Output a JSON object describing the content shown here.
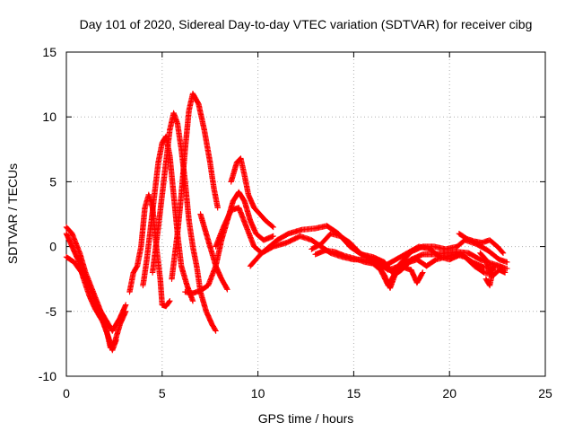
{
  "chart_data": {
    "type": "scatter",
    "title": "Day 101 of 2020, Sidereal Day-to-day VTEC variation (SDTVAR) for receiver cibg",
    "xlabel": "GPS time / hours",
    "ylabel": "SDTVAR / TECUs",
    "xlim": [
      0,
      25
    ],
    "ylim": [
      -10,
      15
    ],
    "grid": true,
    "marker": "+",
    "xticks": [
      0,
      5,
      10,
      15,
      20,
      25
    ],
    "yticks": [
      -10,
      -5,
      0,
      5,
      10,
      15
    ],
    "xtick_labels": [
      "0",
      "5",
      "10",
      "15",
      "20",
      "25"
    ],
    "ytick_labels": [
      "-10",
      "-5",
      "0",
      "5",
      "10",
      "15"
    ],
    "series": [
      {
        "name": "track-a",
        "color": "#ff0000",
        "points": [
          [
            0.0,
            1.5
          ],
          [
            0.3,
            1.0
          ],
          [
            0.7,
            -0.5
          ],
          [
            1.0,
            -2.0
          ],
          [
            1.4,
            -3.5
          ],
          [
            1.8,
            -5.0
          ],
          [
            2.1,
            -6.5
          ],
          [
            2.3,
            -7.8
          ],
          [
            2.5,
            -7.5
          ],
          [
            2.8,
            -6.0
          ],
          [
            3.1,
            -5.0
          ]
        ]
      },
      {
        "name": "track-b",
        "color": "#ff0000",
        "points": [
          [
            0.0,
            1.0
          ],
          [
            0.3,
            0.0
          ],
          [
            0.6,
            -1.0
          ],
          [
            0.9,
            -2.5
          ],
          [
            1.2,
            -3.8
          ],
          [
            1.5,
            -4.8
          ],
          [
            1.9,
            -5.8
          ],
          [
            2.2,
            -7.0
          ],
          [
            2.4,
            -8.0
          ],
          [
            2.6,
            -7.2
          ]
        ]
      },
      {
        "name": "track-c",
        "color": "#ff0000",
        "points": [
          [
            0.0,
            -0.8
          ],
          [
            0.4,
            -1.2
          ],
          [
            0.8,
            -2.0
          ],
          [
            1.2,
            -3.0
          ],
          [
            1.6,
            -4.5
          ],
          [
            2.0,
            -5.5
          ],
          [
            2.4,
            -6.5
          ],
          [
            2.8,
            -5.5
          ],
          [
            3.1,
            -4.5
          ]
        ]
      },
      {
        "name": "track-d",
        "color": "#ff0000",
        "points": [
          [
            3.3,
            -3.5
          ],
          [
            3.5,
            -2.0
          ],
          [
            3.7,
            -1.5
          ],
          [
            3.9,
            0.0
          ],
          [
            4.0,
            1.5
          ],
          [
            4.1,
            3.0
          ],
          [
            4.3,
            4.0
          ],
          [
            4.5,
            3.0
          ],
          [
            4.7,
            0.0
          ],
          [
            4.9,
            -2.5
          ],
          [
            5.0,
            -4.5
          ],
          [
            5.2,
            -4.6
          ],
          [
            5.4,
            -4.2
          ]
        ]
      },
      {
        "name": "track-e",
        "color": "#ff0000",
        "points": [
          [
            4.0,
            -3.0
          ],
          [
            4.2,
            -1.0
          ],
          [
            4.4,
            1.5
          ],
          [
            4.6,
            4.0
          ],
          [
            4.8,
            6.5
          ],
          [
            5.0,
            8.0
          ],
          [
            5.2,
            8.5
          ],
          [
            5.4,
            7.0
          ],
          [
            5.6,
            4.0
          ],
          [
            5.8,
            1.0
          ],
          [
            6.0,
            -1.5
          ],
          [
            6.3,
            -3.0
          ],
          [
            6.6,
            -4.2
          ]
        ]
      },
      {
        "name": "track-f",
        "color": "#ff0000",
        "points": [
          [
            4.5,
            -2.0
          ],
          [
            4.8,
            1.5
          ],
          [
            5.0,
            4.0
          ],
          [
            5.2,
            6.5
          ],
          [
            5.4,
            9.0
          ],
          [
            5.6,
            10.3
          ],
          [
            5.8,
            9.5
          ],
          [
            6.0,
            7.5
          ],
          [
            6.2,
            5.0
          ],
          [
            6.4,
            2.0
          ],
          [
            6.6,
            0.0
          ],
          [
            6.8,
            -1.5
          ],
          [
            7.0,
            -3.5
          ],
          [
            7.3,
            -5.0
          ],
          [
            7.6,
            -6.0
          ],
          [
            7.8,
            -6.5
          ]
        ]
      },
      {
        "name": "track-g",
        "color": "#ff0000",
        "points": [
          [
            5.5,
            -2.5
          ],
          [
            5.8,
            1.0
          ],
          [
            6.0,
            4.0
          ],
          [
            6.2,
            7.5
          ],
          [
            6.4,
            10.5
          ],
          [
            6.6,
            11.8
          ],
          [
            6.9,
            11.0
          ],
          [
            7.2,
            9.0
          ],
          [
            7.5,
            6.5
          ],
          [
            7.7,
            4.5
          ],
          [
            7.9,
            3.0
          ]
        ]
      },
      {
        "name": "track-h",
        "color": "#ff0000",
        "points": [
          [
            7.0,
            2.5
          ],
          [
            7.3,
            1.0
          ],
          [
            7.6,
            -0.5
          ],
          [
            7.8,
            -1.5
          ],
          [
            8.1,
            -2.5
          ],
          [
            8.4,
            -3.3
          ]
        ]
      },
      {
        "name": "track-i",
        "color": "#ff0000",
        "points": [
          [
            6.2,
            -3.5
          ],
          [
            6.6,
            -3.6
          ],
          [
            7.0,
            -3.4
          ],
          [
            7.4,
            -3.0
          ],
          [
            7.8,
            -1.5
          ],
          [
            8.1,
            0.5
          ],
          [
            8.4,
            2.0
          ],
          [
            8.7,
            3.5
          ],
          [
            9.0,
            4.2
          ],
          [
            9.3,
            3.5
          ],
          [
            9.6,
            2.0
          ],
          [
            9.9,
            1.0
          ],
          [
            10.3,
            0.5
          ],
          [
            10.8,
            0.8
          ]
        ]
      },
      {
        "name": "track-j",
        "color": "#ff0000",
        "points": [
          [
            8.6,
            5.0
          ],
          [
            8.9,
            6.5
          ],
          [
            9.1,
            6.8
          ],
          [
            9.3,
            5.5
          ],
          [
            9.5,
            4.0
          ],
          [
            9.8,
            3.0
          ],
          [
            10.1,
            2.5
          ],
          [
            10.4,
            2.0
          ],
          [
            10.8,
            1.5
          ]
        ]
      },
      {
        "name": "track-k",
        "color": "#ff0000",
        "points": [
          [
            7.8,
            0.0
          ],
          [
            8.2,
            1.5
          ],
          [
            8.6,
            2.8
          ],
          [
            9.0,
            3.0
          ],
          [
            9.4,
            1.5
          ],
          [
            9.8,
            0.0
          ],
          [
            10.2,
            -0.5
          ],
          [
            10.6,
            0.0
          ],
          [
            11.0,
            0.5
          ],
          [
            11.6,
            1.0
          ],
          [
            12.3,
            1.3
          ],
          [
            13.0,
            1.4
          ],
          [
            13.6,
            1.6
          ],
          [
            14.2,
            1.0
          ],
          [
            14.8,
            0.0
          ],
          [
            15.3,
            -0.5
          ],
          [
            16.0,
            -1.0
          ],
          [
            16.6,
            -1.5
          ],
          [
            17.2,
            -1.0
          ],
          [
            17.8,
            -0.5
          ],
          [
            18.4,
            0.0
          ],
          [
            19.0,
            -0.2
          ],
          [
            19.5,
            -0.8
          ],
          [
            20.0,
            -1.0
          ],
          [
            20.6,
            -0.6
          ],
          [
            21.2,
            -1.2
          ],
          [
            21.8,
            -1.6
          ],
          [
            22.5,
            -1.5
          ],
          [
            23.0,
            -1.7
          ]
        ]
      },
      {
        "name": "track-l",
        "color": "#ff0000",
        "points": [
          [
            9.6,
            -1.5
          ],
          [
            10.2,
            -0.5
          ],
          [
            10.8,
            0.0
          ],
          [
            11.5,
            0.3
          ],
          [
            12.2,
            0.8
          ],
          [
            12.8,
            0.5
          ],
          [
            13.3,
            0.0
          ],
          [
            13.8,
            -0.5
          ],
          [
            14.4,
            -0.8
          ],
          [
            15.0,
            -1.0
          ],
          [
            15.6,
            -1.0
          ],
          [
            16.2,
            -1.2
          ],
          [
            16.8,
            -1.8
          ],
          [
            17.4,
            -1.5
          ],
          [
            18.0,
            -1.0
          ],
          [
            18.6,
            -0.6
          ],
          [
            19.2,
            -0.6
          ],
          [
            19.8,
            -0.5
          ],
          [
            20.4,
            -0.4
          ],
          [
            21.0,
            -0.5
          ],
          [
            21.6,
            -1.0
          ],
          [
            22.2,
            -1.3
          ],
          [
            22.8,
            -1.6
          ]
        ]
      },
      {
        "name": "track-m",
        "color": "#ff0000",
        "points": [
          [
            12.8,
            -0.2
          ],
          [
            13.3,
            0.2
          ],
          [
            13.8,
            1.0
          ],
          [
            14.3,
            0.8
          ],
          [
            14.8,
            0.3
          ],
          [
            15.4,
            -0.6
          ],
          [
            16.0,
            -0.8
          ],
          [
            16.6,
            -1.2
          ],
          [
            17.0,
            -2.0
          ],
          [
            17.5,
            -1.2
          ],
          [
            18.0,
            -0.4
          ],
          [
            18.6,
            0.0
          ],
          [
            19.2,
            0.0
          ],
          [
            19.8,
            -0.2
          ],
          [
            20.4,
            0.0
          ],
          [
            20.8,
            0.5
          ],
          [
            21.4,
            0.2
          ],
          [
            22.0,
            -0.3
          ],
          [
            22.6,
            -1.0
          ],
          [
            23.0,
            -1.2
          ]
        ]
      },
      {
        "name": "track-n",
        "color": "#ff0000",
        "points": [
          [
            13.0,
            -0.6
          ],
          [
            13.5,
            -0.3
          ],
          [
            14.0,
            -0.4
          ],
          [
            14.5,
            -0.7
          ],
          [
            15.0,
            -0.9
          ],
          [
            15.6,
            -1.2
          ],
          [
            16.0,
            -1.3
          ],
          [
            16.4,
            -1.8
          ],
          [
            16.8,
            -3.0
          ],
          [
            17.1,
            -2.2
          ],
          [
            17.5,
            -1.8
          ],
          [
            17.9,
            -1.2
          ],
          [
            18.3,
            -1.0
          ],
          [
            18.8,
            -1.5
          ],
          [
            19.3,
            -1.0
          ],
          [
            19.8,
            -0.8
          ],
          [
            20.3,
            -0.6
          ],
          [
            20.8,
            -0.8
          ],
          [
            21.3,
            -1.5
          ],
          [
            21.8,
            -2.0
          ],
          [
            22.3,
            -2.2
          ],
          [
            22.6,
            -1.8
          ],
          [
            22.9,
            -2.0
          ]
        ]
      },
      {
        "name": "track-o",
        "color": "#ff0000",
        "points": [
          [
            20.5,
            1.0
          ],
          [
            20.9,
            0.6
          ],
          [
            21.3,
            0.4
          ],
          [
            21.7,
            0.3
          ],
          [
            22.1,
            0.5
          ],
          [
            22.5,
            0.0
          ],
          [
            22.8,
            -0.5
          ]
        ]
      },
      {
        "name": "track-p",
        "color": "#ff0000",
        "points": [
          [
            16.3,
            -1.5
          ],
          [
            16.6,
            -2.2
          ],
          [
            16.9,
            -3.2
          ],
          [
            17.2,
            -2.0
          ],
          [
            17.6,
            -1.6
          ],
          [
            18.0,
            -1.8
          ],
          [
            18.3,
            -2.8
          ],
          [
            18.6,
            -2.0
          ]
        ]
      },
      {
        "name": "track-q",
        "color": "#ff0000",
        "points": [
          [
            21.6,
            -0.5
          ],
          [
            21.9,
            -1.0
          ],
          [
            22.1,
            -2.0
          ],
          [
            22.3,
            -1.6
          ],
          [
            22.1,
            -3.0
          ],
          [
            21.9,
            -2.5
          ]
        ]
      }
    ]
  }
}
